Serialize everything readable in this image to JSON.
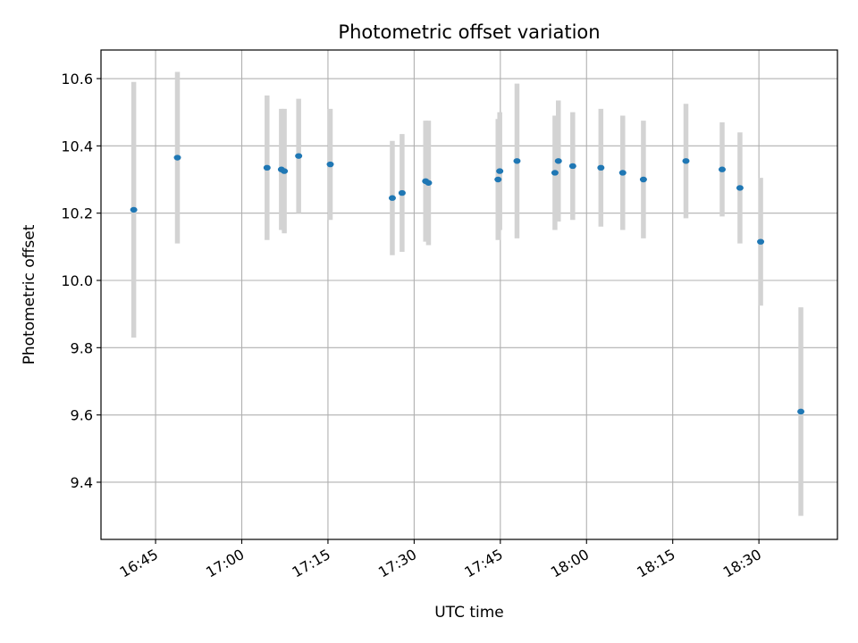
{
  "chart_data": {
    "type": "scatter",
    "title": "Photometric offset variation",
    "xlabel": "UTC time",
    "ylabel": "Photometric offset",
    "xlim": [
      "16:35:30",
      "18:43:40"
    ],
    "ylim": [
      9.23,
      10.685
    ],
    "grid": true,
    "xticks": [
      "16:45",
      "17:00",
      "17:15",
      "17:30",
      "17:45",
      "18:00",
      "18:15",
      "18:30"
    ],
    "yticks": [
      "9.4",
      "9.6",
      "9.8",
      "10.0",
      "10.2",
      "10.4",
      "10.6"
    ],
    "colors": {
      "marker": "#1f77b4",
      "errorbar": "#d3d3d3",
      "grid": "#b0b0b0"
    },
    "points": [
      {
        "x": "16:41:12",
        "y": 10.21,
        "yerr_low": 0.38,
        "yerr_high": 0.38
      },
      {
        "x": "16:48:48",
        "y": 10.365,
        "yerr_low": 0.255,
        "yerr_high": 0.255
      },
      {
        "x": "17:04:24",
        "y": 10.335,
        "yerr_low": 0.215,
        "yerr_high": 0.215
      },
      {
        "x": "17:06:54",
        "y": 10.33,
        "yerr_low": 0.18,
        "yerr_high": 0.18
      },
      {
        "x": "17:07:24",
        "y": 10.325,
        "yerr_low": 0.185,
        "yerr_high": 0.185
      },
      {
        "x": "17:09:54",
        "y": 10.37,
        "yerr_low": 0.17,
        "yerr_high": 0.17
      },
      {
        "x": "17:15:24",
        "y": 10.345,
        "yerr_low": 0.165,
        "yerr_high": 0.165
      },
      {
        "x": "17:26:12",
        "y": 10.245,
        "yerr_low": 0.17,
        "yerr_high": 0.17
      },
      {
        "x": "17:27:54",
        "y": 10.26,
        "yerr_low": 0.175,
        "yerr_high": 0.175
      },
      {
        "x": "17:32:00",
        "y": 10.295,
        "yerr_low": 0.18,
        "yerr_high": 0.18
      },
      {
        "x": "17:32:30",
        "y": 10.29,
        "yerr_low": 0.185,
        "yerr_high": 0.185
      },
      {
        "x": "17:44:36",
        "y": 10.3,
        "yerr_low": 0.18,
        "yerr_high": 0.18
      },
      {
        "x": "17:44:54",
        "y": 10.325,
        "yerr_low": 0.175,
        "yerr_high": 0.175
      },
      {
        "x": "17:47:54",
        "y": 10.355,
        "yerr_low": 0.23,
        "yerr_high": 0.23
      },
      {
        "x": "17:54:30",
        "y": 10.32,
        "yerr_low": 0.17,
        "yerr_high": 0.17
      },
      {
        "x": "17:55:06",
        "y": 10.355,
        "yerr_low": 0.18,
        "yerr_high": 0.18
      },
      {
        "x": "17:57:36",
        "y": 10.34,
        "yerr_low": 0.16,
        "yerr_high": 0.16
      },
      {
        "x": "18:02:30",
        "y": 10.335,
        "yerr_low": 0.175,
        "yerr_high": 0.175
      },
      {
        "x": "18:06:18",
        "y": 10.32,
        "yerr_low": 0.17,
        "yerr_high": 0.17
      },
      {
        "x": "18:09:54",
        "y": 10.3,
        "yerr_low": 0.175,
        "yerr_high": 0.175
      },
      {
        "x": "18:17:18",
        "y": 10.355,
        "yerr_low": 0.17,
        "yerr_high": 0.17
      },
      {
        "x": "18:23:36",
        "y": 10.33,
        "yerr_low": 0.14,
        "yerr_high": 0.14
      },
      {
        "x": "18:26:42",
        "y": 10.275,
        "yerr_low": 0.165,
        "yerr_high": 0.165
      },
      {
        "x": "18:30:18",
        "y": 10.115,
        "yerr_low": 0.19,
        "yerr_high": 0.19
      },
      {
        "x": "18:37:18",
        "y": 9.61,
        "yerr_low": 0.31,
        "yerr_high": 0.31
      }
    ]
  }
}
